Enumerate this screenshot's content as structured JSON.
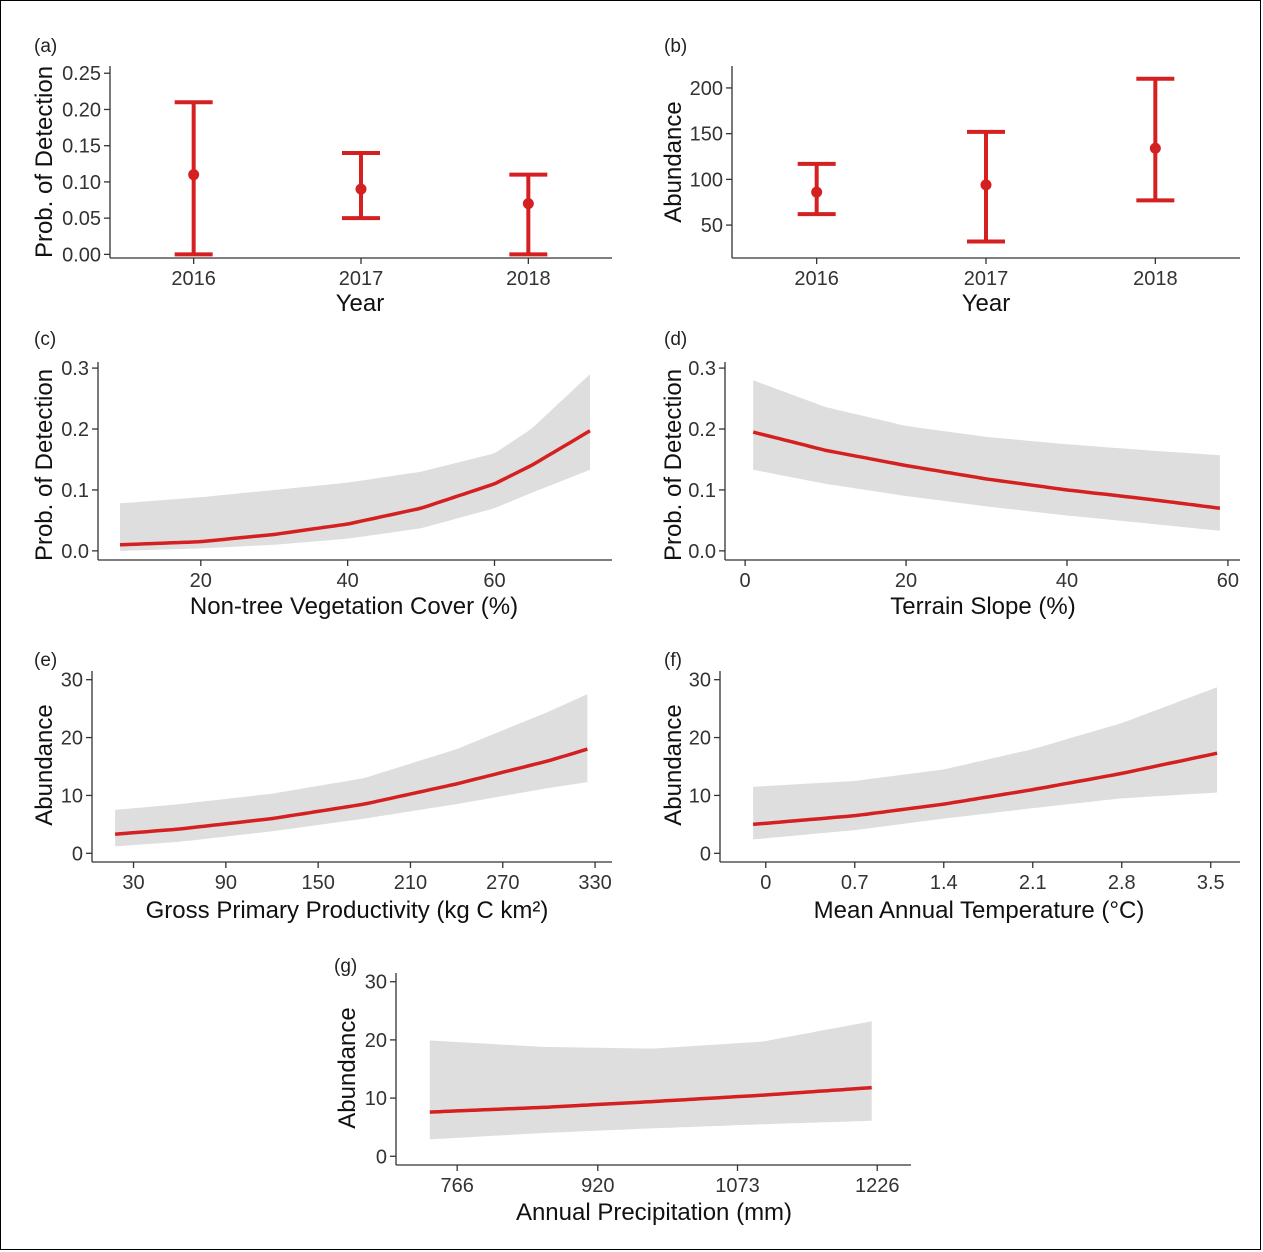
{
  "colors": {
    "accent": "#d42020",
    "band": "#dedede",
    "axis": "#333333"
  },
  "chart_data": [
    {
      "panel": "(a)",
      "type": "scatter",
      "xlabel": "Year",
      "ylabel": "Prob. of Detection",
      "categories": [
        "2016",
        "2017",
        "2018"
      ],
      "values": [
        0.11,
        0.09,
        0.07
      ],
      "lower": [
        0.0,
        0.05,
        0.0
      ],
      "upper": [
        0.21,
        0.14,
        0.11
      ],
      "yticks": [
        "0.00",
        "0.05",
        "0.10",
        "0.15",
        "0.20",
        "0.25"
      ],
      "ylim": [
        -0.005,
        0.26
      ]
    },
    {
      "panel": "(b)",
      "type": "scatter",
      "xlabel": "Year",
      "ylabel": "Abundance",
      "categories": [
        "2016",
        "2017",
        "2018"
      ],
      "values": [
        86,
        94,
        134
      ],
      "lower": [
        62,
        32,
        77
      ],
      "upper": [
        117,
        152,
        210
      ],
      "yticks": [
        "50",
        "100",
        "150",
        "200"
      ],
      "ylim": [
        14,
        224
      ]
    },
    {
      "panel": "(c)",
      "type": "line",
      "xlabel": "Non-tree Vegetation Cover (%)",
      "ylabel": "Prob. of Detection",
      "x": [
        9,
        20,
        30,
        40,
        50,
        60,
        65,
        73
      ],
      "y": [
        0.01,
        0.015,
        0.027,
        0.044,
        0.07,
        0.11,
        0.14,
        0.197
      ],
      "lower": [
        0.0,
        0.004,
        0.01,
        0.02,
        0.037,
        0.07,
        0.095,
        0.133
      ],
      "upper": [
        0.078,
        0.088,
        0.1,
        0.112,
        0.13,
        0.16,
        0.2,
        0.29
      ],
      "xticks": [
        "20",
        "40",
        "60"
      ],
      "yticks": [
        "0.0",
        "0.1",
        "0.2",
        "0.3"
      ],
      "xlim": [
        6,
        76
      ],
      "ylim": [
        -0.015,
        0.31
      ]
    },
    {
      "panel": "(d)",
      "type": "line",
      "xlabel": "Terrain Slope (%)",
      "ylabel": "Prob. of Detection",
      "x": [
        1,
        10,
        20,
        30,
        40,
        50,
        59
      ],
      "y": [
        0.195,
        0.165,
        0.14,
        0.118,
        0.1,
        0.085,
        0.07
      ],
      "lower": [
        0.133,
        0.11,
        0.09,
        0.073,
        0.058,
        0.045,
        0.033
      ],
      "upper": [
        0.28,
        0.236,
        0.205,
        0.187,
        0.175,
        0.165,
        0.157
      ],
      "xticks": [
        "0",
        "20",
        "40",
        "60"
      ],
      "yticks": [
        "0.0",
        "0.1",
        "0.2",
        "0.3"
      ],
      "xlim": [
        -2.5,
        61.5
      ],
      "ylim": [
        -0.015,
        0.31
      ]
    },
    {
      "panel": "(e)",
      "type": "line",
      "xlabel": "Gross Primary Productivity (kg C km²)",
      "ylabel": "Abundance",
      "x": [
        18,
        60,
        120,
        180,
        240,
        300,
        325
      ],
      "y": [
        3.3,
        4.2,
        6.0,
        8.5,
        12.0,
        16.0,
        18.0
      ],
      "lower": [
        1.2,
        2.0,
        3.8,
        6.0,
        8.5,
        11.3,
        12.3
      ],
      "upper": [
        7.5,
        8.5,
        10.3,
        13.0,
        18.0,
        24.5,
        27.5
      ],
      "xticks": [
        "30",
        "90",
        "150",
        "210",
        "270",
        "330"
      ],
      "yticks": [
        "0",
        "10",
        "20",
        "30"
      ],
      "xlim": [
        3,
        341
      ],
      "ylim": [
        -1.5,
        31.5
      ]
    },
    {
      "panel": "(f)",
      "type": "line",
      "xlabel": "Mean Annual Temperature (°C)",
      "ylabel": "Abundance",
      "x": [
        -0.1,
        0.7,
        1.4,
        2.1,
        2.8,
        3.55
      ],
      "y": [
        5.0,
        6.5,
        8.5,
        11.0,
        13.8,
        17.3
      ],
      "lower": [
        2.4,
        4.0,
        6.0,
        7.8,
        9.5,
        10.5
      ],
      "upper": [
        11.5,
        12.5,
        14.5,
        18.0,
        22.5,
        28.7
      ],
      "xticks": [
        "0",
        "0.7",
        "1.4",
        "2.1",
        "2.8",
        "3.5"
      ],
      "yticks": [
        "0",
        "10",
        "20",
        "30"
      ],
      "xlim": [
        -0.36,
        3.73
      ],
      "ylim": [
        -1.5,
        31.5
      ]
    },
    {
      "panel": "(g)",
      "type": "line",
      "xlabel": "Annual Precipitation (mm)",
      "ylabel": "Abundance",
      "x": [
        736,
        860,
        980,
        1100,
        1220
      ],
      "y": [
        7.6,
        8.4,
        9.4,
        10.5,
        11.8
      ],
      "lower": [
        2.9,
        4.0,
        4.8,
        5.5,
        6.1
      ],
      "upper": [
        19.9,
        18.8,
        18.5,
        19.7,
        23.2
      ],
      "xticks": [
        "766",
        "920",
        "1073",
        "1226"
      ],
      "yticks": [
        "0",
        "10",
        "20",
        "30"
      ],
      "xlim": [
        699,
        1263
      ],
      "ylim": [
        -1.5,
        31.5
      ]
    }
  ]
}
